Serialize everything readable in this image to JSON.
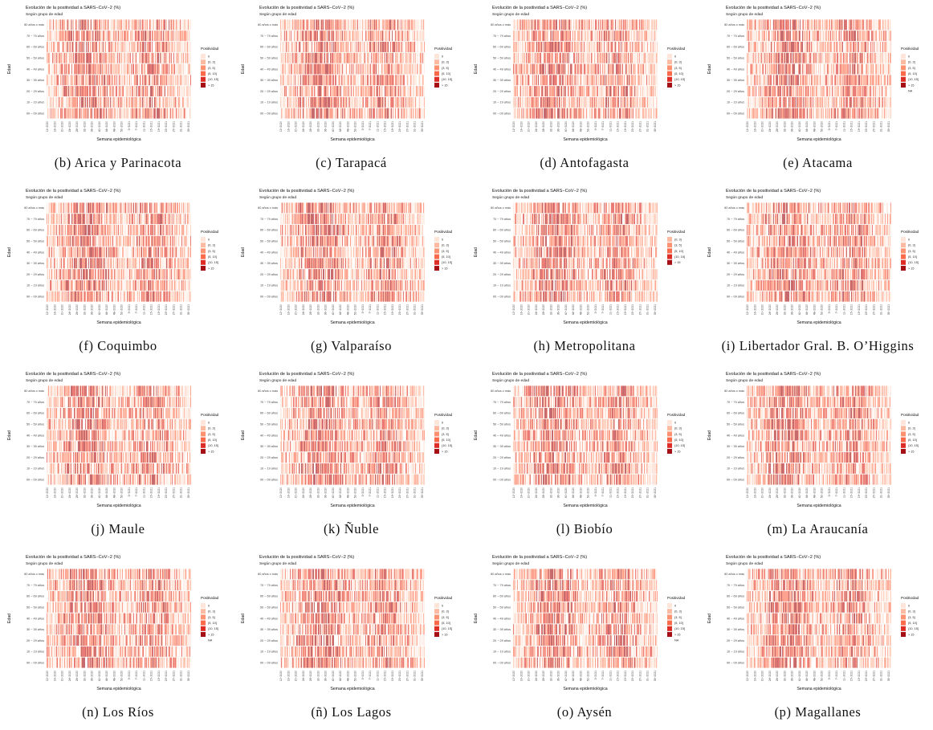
{
  "common": {
    "title": "Evolución de la positividad a SARS−CoV−2 (%)",
    "subtitle": "Según grupo de edad",
    "xlabel": "Semana epidemiológica",
    "ylabel": "Edad",
    "legend_title": "Positividad",
    "age_groups": [
      "00 − 09 años",
      "10 − 19 años",
      "20 − 29 años",
      "30 − 39 años",
      "40 − 49 años",
      "50 − 59 años",
      "60 − 69 años",
      "70 − 79 años",
      "80 años o más"
    ],
    "week_ticks": [
      "12−2020",
      "16−2020",
      "20−2020",
      "24−2020",
      "28−2020",
      "32−2020",
      "36−2020",
      "40−2020",
      "44−2020",
      "48−2020",
      "52−2020",
      "3−2021",
      "7−2021",
      "11−2021",
      "15−2021",
      "19−2021",
      "23−2021",
      "27−2021",
      "31−2021",
      "35−2021"
    ],
    "legend_levels": [
      "0",
      "(0, 3]",
      "(3, 5]",
      "(5, 10]",
      "(10, 15]",
      "> 15",
      "NA"
    ],
    "colors": [
      "#fee5d9",
      "#fcbba1",
      "#fc9272",
      "#fb6a4a",
      "#de2d26",
      "#a50f15"
    ],
    "na_color": "#9e9e9e"
  },
  "panels": [
    {
      "caption": "(b) Arica y Parinacota",
      "legend": [
        "0",
        "(0, 3]",
        "(3, 5]",
        "(5, 10]",
        "(10, 15]",
        "> 15"
      ]
    },
    {
      "caption": "(c) Tarapacá",
      "legend": [
        "0",
        "(0, 3]",
        "(3, 5]",
        "(5, 10]",
        "(10, 15]",
        "> 15"
      ]
    },
    {
      "caption": "(d) Antofagasta",
      "legend": [
        "0",
        "(0, 3]",
        "(3, 5]",
        "(5, 10]",
        "(10, 15]",
        "> 15"
      ]
    },
    {
      "caption": "(e) Atacama",
      "legend": [
        "0",
        "(0, 3]",
        "(3, 5]",
        "(5, 10]",
        "(10, 15]",
        "> 15",
        "NA"
      ]
    },
    {
      "caption": "(f) Coquimbo",
      "legend": [
        "0",
        "(0, 3]",
        "(3, 5]",
        "(5, 10]",
        "(10, 15]",
        "> 15"
      ]
    },
    {
      "caption": "(g) Valparaíso",
      "legend": [
        "0",
        "(0, 3]",
        "(3, 5]",
        "(5, 10]",
        "(10, 15]",
        "> 15"
      ]
    },
    {
      "caption": "(h) Metropolitana",
      "legend": [
        "(0, 3]",
        "(3, 5]",
        "(5, 10]",
        "(10, 15]",
        "> 15"
      ]
    },
    {
      "caption": "(i) Libertador Gral. B. O’Higgins",
      "legend": [
        "0",
        "(0, 3]",
        "(3, 5]",
        "(5, 10]",
        "(10, 15]",
        "> 15"
      ]
    },
    {
      "caption": "(j) Maule",
      "legend": [
        "0",
        "(0, 3]",
        "(3, 5]",
        "(5, 10]",
        "(10, 15]",
        "> 15"
      ]
    },
    {
      "caption": "(k) Ñuble",
      "legend": [
        "0",
        "(0, 3]",
        "(3, 5]",
        "(5, 10]",
        "(10, 15]",
        "> 15"
      ]
    },
    {
      "caption": "(l) Biobío",
      "legend": [
        "0",
        "(0, 3]",
        "(3, 5]",
        "(5, 10]",
        "(10, 15]",
        "> 15"
      ]
    },
    {
      "caption": "(m) La Araucanía",
      "legend": [
        "0",
        "(0, 3]",
        "(3, 5]",
        "(5, 10]",
        "(10, 15]",
        "> 15"
      ]
    },
    {
      "caption": "(n) Los Ríos",
      "legend": [
        "0",
        "(0, 3]",
        "(3, 5]",
        "(5, 10]",
        "(10, 15]",
        "> 15",
        "NA"
      ]
    },
    {
      "caption": "(ñ) Los Lagos",
      "legend": [
        "0",
        "(0, 3]",
        "(3, 5]",
        "(5, 10]",
        "(10, 15]",
        "> 15"
      ]
    },
    {
      "caption": "(o) Aysén",
      "legend": [
        "0",
        "(0, 3]",
        "(3, 5]",
        "(5, 10]",
        "(10, 15]",
        "> 15",
        "NA"
      ]
    },
    {
      "caption": "(p) Magallanes",
      "legend": [
        "0",
        "(0, 3]",
        "(3, 5]",
        "(5, 10]",
        "(10, 15]",
        "> 15"
      ]
    }
  ],
  "chart_data": {
    "type": "heatmap",
    "note_levels": "cells are daily positivity classes by age group; individual cell values are not legible at this resolution",
    "y_categories": [
      "00 − 09 años",
      "10 − 19 años",
      "20 − 29 años",
      "30 − 39 años",
      "40 − 49 años",
      "50 − 59 años",
      "60 − 69 años",
      "70 − 79 años",
      "80 años o más"
    ],
    "x_ticks": [
      "12−2020",
      "16−2020",
      "20−2020",
      "24−2020",
      "28−2020",
      "32−2020",
      "36−2020",
      "40−2020",
      "44−2020",
      "48−2020",
      "52−2020",
      "3−2021",
      "7−2021",
      "11−2021",
      "15−2021",
      "19−2021",
      "23−2021",
      "27−2021",
      "31−2021",
      "35−2021"
    ],
    "legend": [
      "0",
      "(0, 3]",
      "(3, 5]",
      "(5, 10]",
      "(10, 15]",
      "> 15",
      "NA"
    ]
  }
}
